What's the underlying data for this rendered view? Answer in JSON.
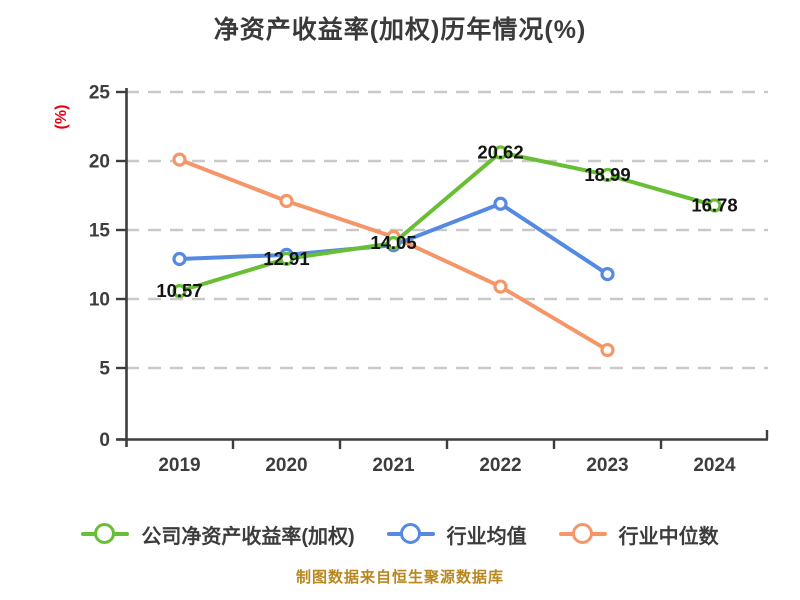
{
  "page": {
    "footer": "制图数据来自恒生聚源数据库"
  },
  "colors": {
    "company_line": "#68be35",
    "industry_avg_line": "#5589e2",
    "industry_median_line": "#f59669",
    "title_text": "#3a3a3a",
    "axis_line": "#3d3d3d",
    "axis_tick_text": "#3d3d3d",
    "grid_line": "#c9c9c9",
    "data_label_text": "#141414",
    "y_unit_text": "#e60012",
    "legend_text": "#3c3c3c",
    "footer_text": "#b9871f",
    "marker_fill": "#ffffff"
  },
  "chart_data": {
    "type": "line",
    "title": "净资产收益率(加权)历年情况(%)",
    "ylabel": "(%)",
    "xlabel": "",
    "categories": [
      "2019",
      "2020",
      "2021",
      "2022",
      "2023",
      "2024"
    ],
    "ylim": [
      0,
      25
    ],
    "yticks": [
      0,
      5,
      10,
      15,
      20,
      25
    ],
    "grid": "horizontal dashed gridlines",
    "legend_position": "bottom",
    "series": [
      {
        "name": "公司净资产收益率(加权)",
        "color": "#68be35",
        "values": [
          10.57,
          12.91,
          14.05,
          20.62,
          18.99,
          16.78
        ],
        "labeled": true,
        "data_labels": [
          "10.57",
          "12.91",
          "14.05",
          "20.62",
          "18.99",
          "16.78"
        ]
      },
      {
        "name": "行业均值",
        "color": "#5589e2",
        "values": [
          12.9,
          13.2,
          13.9,
          16.9,
          11.8,
          null
        ],
        "labeled": false,
        "data_labels": null
      },
      {
        "name": "行业中位数",
        "color": "#f59669",
        "values": [
          20.1,
          17.1,
          14.5,
          10.9,
          6.3,
          null
        ],
        "labeled": false,
        "data_labels": null
      }
    ]
  },
  "legend": {
    "items": [
      {
        "label": "公司净资产收益率(加权)",
        "color": "#68be35"
      },
      {
        "label": "行业均值",
        "color": "#5589e2"
      },
      {
        "label": "行业中位数",
        "color": "#f59669"
      }
    ]
  }
}
